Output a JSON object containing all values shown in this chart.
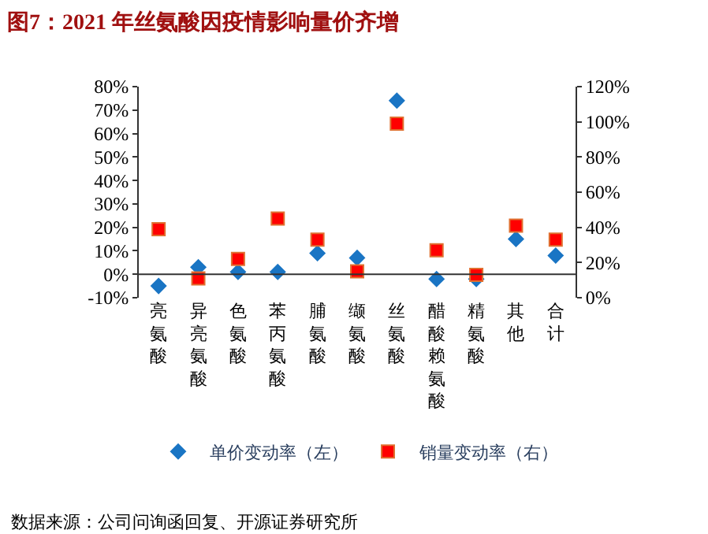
{
  "chart_data": {
    "type": "scatter",
    "title": "图7：2021 年丝氨酸因疫情影响量价齐增",
    "categories": [
      "亮氨酸",
      "异亮氨酸",
      "色氨酸",
      "苯丙氨酸",
      "脯氨酸",
      "缬氨酸",
      "丝氨酸",
      "醋酸赖氨酸",
      "精氨酸",
      "其他",
      "合计"
    ],
    "series": [
      {
        "name": "单价变动率（左）",
        "color": "#1a75c4",
        "marker": "diamond",
        "values": [
          -5,
          3,
          1,
          1,
          9,
          7,
          74,
          -2,
          -2,
          15,
          8
        ]
      },
      {
        "name": "销量变动率（右）",
        "color": "#ff0000",
        "marker": "square",
        "axis": "y2",
        "values": [
          39,
          11,
          22,
          45,
          33,
          15,
          99,
          27,
          13,
          41,
          33
        ]
      }
    ],
    "ylim": [
      -10,
      80
    ],
    "yticks": [
      {
        "value": -10,
        "label": "-10%"
      },
      {
        "value": 0,
        "label": "0%"
      },
      {
        "value": 10,
        "label": "10%"
      },
      {
        "value": 20,
        "label": "20%"
      },
      {
        "value": 30,
        "label": "30%"
      },
      {
        "value": 40,
        "label": "40%"
      },
      {
        "value": 50,
        "label": "50%"
      },
      {
        "value": 60,
        "label": "60%"
      },
      {
        "value": 70,
        "label": "70%"
      },
      {
        "value": 80,
        "label": "80%"
      }
    ],
    "y2lim": [
      0,
      120
    ],
    "y2ticks": [
      {
        "value": 0,
        "label": "0%"
      },
      {
        "value": 20,
        "label": "20%"
      },
      {
        "value": 40,
        "label": "40%"
      },
      {
        "value": 60,
        "label": "60%"
      },
      {
        "value": 80,
        "label": "80%"
      },
      {
        "value": 100,
        "label": "100%"
      },
      {
        "value": 120,
        "label": "120%"
      }
    ],
    "legend": "bottom",
    "annotations": [
      "数据来源：公司问询函回复、开源证券研究所"
    ]
  }
}
